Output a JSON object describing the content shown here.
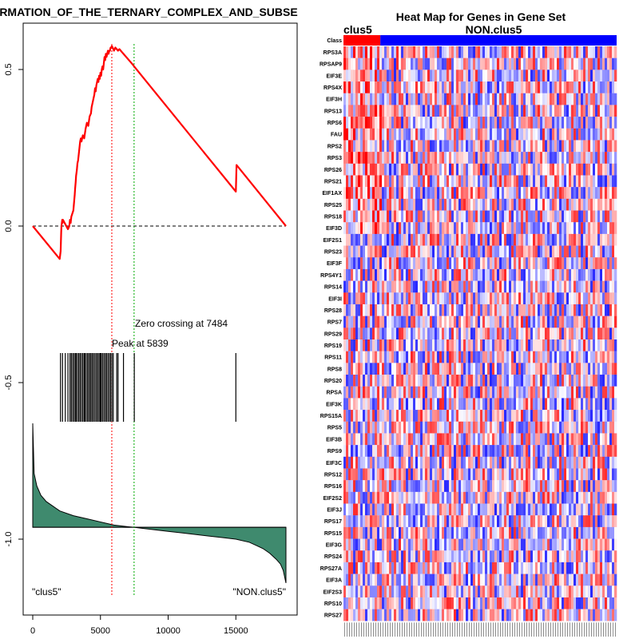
{
  "colors": {
    "es_line": "#ff0000",
    "peak_line": "#ff0000",
    "zero_cross_line": "#00aa00",
    "metric_fill": "#3f8a6e",
    "clus5_bar": "#ff0000",
    "non_bar": "#0000ff"
  },
  "chart_data": [
    {
      "type": "line",
      "title": "RMATION_OF_THE_TERNARY_COMPLEX_AND_SUBSE",
      "xlim": [
        0,
        18700
      ],
      "ylim": [
        -1.25,
        0.68
      ],
      "x_ticks": [
        0,
        5000,
        10000,
        15000
      ],
      "y_ticks": [
        0.5,
        0.0,
        -0.5,
        -1.0
      ],
      "x_tick_labels": [
        "0",
        "5000",
        "10000",
        "15000"
      ],
      "y_tick_labels": [
        "0.5",
        "0.0",
        "-0.5",
        "-1.0"
      ],
      "series": [
        {
          "name": "enrichment_score",
          "x": [
            0,
            1990,
            2060,
            2080,
            2100,
            2120,
            2150,
            2180,
            2200,
            2230,
            2600,
            2700,
            2750,
            2800,
            2850,
            3000,
            3060,
            3100,
            3130,
            3170,
            3200,
            3230,
            3260,
            3300,
            3350,
            3400,
            3450,
            3500,
            3550,
            3600,
            3700,
            3800,
            3900,
            4000,
            4100,
            4200,
            4300,
            4350,
            4400,
            4450,
            4500,
            4550,
            4600,
            4650,
            4700,
            4750,
            4800,
            4850,
            4900,
            4950,
            5000,
            5050,
            5100,
            5150,
            5200,
            5250,
            5300,
            5350,
            5400,
            5450,
            5500,
            5550,
            5600,
            5650,
            5700,
            5750,
            5800,
            5839,
            5900,
            6000,
            6100,
            6200,
            6300,
            6400,
            6500,
            6600,
            6700,
            6800,
            6900,
            7000,
            7100,
            7200,
            7300,
            7400,
            7484,
            15000,
            15050,
            18700
          ],
          "y": [
            0.0,
            -0.105,
            -0.08,
            -0.05,
            -0.02,
            0.0,
            0.01,
            0.02,
            0.01,
            0.02,
            -0.01,
            0.0,
            0.02,
            0.01,
            0.03,
            0.05,
            0.08,
            0.1,
            0.12,
            0.14,
            0.16,
            0.17,
            0.18,
            0.2,
            0.21,
            0.23,
            0.25,
            0.27,
            0.28,
            0.27,
            0.29,
            0.28,
            0.31,
            0.33,
            0.32,
            0.35,
            0.36,
            0.38,
            0.39,
            0.4,
            0.41,
            0.42,
            0.44,
            0.43,
            0.45,
            0.46,
            0.47,
            0.46,
            0.48,
            0.47,
            0.49,
            0.48,
            0.5,
            0.51,
            0.5,
            0.52,
            0.54,
            0.53,
            0.55,
            0.54,
            0.55,
            0.56,
            0.55,
            0.56,
            0.56,
            0.57,
            0.57,
            0.575,
            0.57,
            0.56,
            0.57,
            0.565,
            0.56,
            0.565,
            0.56,
            0.555,
            0.55,
            0.545,
            0.54,
            0.535,
            0.53,
            0.525,
            0.52,
            0.515,
            0.51,
            0.11,
            0.195,
            0.0
          ]
        }
      ],
      "zero_line": 0.0,
      "peak": {
        "x": 5839,
        "label": "Peak at 5839"
      },
      "zero_crossing": {
        "x": 7484,
        "label": "Zero crossing at 7484"
      },
      "hit_positions": [
        2050,
        2200,
        2400,
        2600,
        2750,
        2850,
        2950,
        3050,
        3150,
        3200,
        3300,
        3400,
        3500,
        3600,
        3700,
        3800,
        3850,
        3950,
        4050,
        4150,
        4250,
        4300,
        4400,
        4500,
        4600,
        4700,
        4800,
        4900,
        4980,
        5050,
        5150,
        5250,
        5350,
        5450,
        5550,
        5650,
        5750,
        5850,
        5950,
        6200,
        6300,
        6700,
        7500,
        15000
      ],
      "ranked_metric": {
        "x": [
          0,
          100,
          300,
          600,
          1000,
          1500,
          2000,
          3000,
          4000,
          5000,
          6000,
          7000,
          7484,
          8000,
          9000,
          10000,
          11000,
          12000,
          13000,
          14000,
          15000,
          16000,
          16500,
          17000,
          17500,
          18000,
          18300,
          18500,
          18600,
          18700
        ],
        "y": [
          -0.63,
          -0.79,
          -0.83,
          -0.86,
          -0.88,
          -0.895,
          -0.91,
          -0.925,
          -0.935,
          -0.945,
          -0.955,
          -0.96,
          -0.962,
          -0.965,
          -0.97,
          -0.975,
          -0.98,
          -0.985,
          -0.99,
          -0.995,
          -1.0,
          -1.01,
          -1.02,
          -1.03,
          -1.045,
          -1.065,
          -1.08,
          -1.1,
          -1.12,
          -1.14
        ],
        "baseline": -0.962
      },
      "left_label": "\"clus5\"",
      "right_label": "\"NON.clus5\""
    },
    {
      "type": "heatmap",
      "title": "Heat Map for Genes in Gene Set",
      "class_row_label": "Class",
      "group_labels": [
        "clus5",
        "NON.clus5"
      ],
      "group_split_fraction": 0.135,
      "rows": [
        "RPS3A",
        "RPSAP9",
        "EIF3E",
        "RPS4X",
        "EIF3H",
        "RPS13",
        "RPS6",
        "FAU",
        "RPS2",
        "RPS3",
        "RPS26",
        "RPS21",
        "EIF1AX",
        "RPS25",
        "RPS18",
        "EIF3D",
        "EIF2S1",
        "RPS23",
        "EIF3F",
        "RPS4Y1",
        "RPS14",
        "EIF3I",
        "RPS28",
        "RPS7",
        "RPS29",
        "RPS19",
        "RPS11",
        "RPS8",
        "RPS20",
        "RPSA",
        "EIF3K",
        "RPS15A",
        "RPS5",
        "EIF3B",
        "RPS9",
        "EIF3C",
        "RPS12",
        "RPS16",
        "EIF2S2",
        "EIF3J",
        "RPS17",
        "RPS15",
        "EIF3G",
        "RPS24",
        "RPS27A",
        "EIF3A",
        "EIF2S3",
        "RPS10",
        "RPS27"
      ]
    }
  ]
}
